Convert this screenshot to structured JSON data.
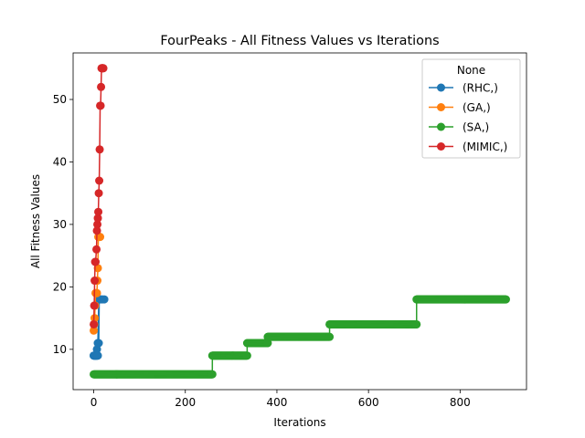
{
  "chart_data": {
    "type": "line",
    "title": "FourPeaks - All Fitness Values vs Iterations",
    "xlabel": "Iterations",
    "ylabel": "All Fitness Values",
    "xlim": [
      -45,
      945
    ],
    "ylim": [
      3.55,
      57.45
    ],
    "x_ticks": [
      0,
      200,
      400,
      600,
      800
    ],
    "y_ticks": [
      10,
      20,
      30,
      40,
      50
    ],
    "grid": false,
    "legend": {
      "title": "None",
      "placement": "top-right"
    },
    "series": [
      {
        "name": "(RHC,)",
        "color": "#1f77b4",
        "segments": [
          [
            0,
            9,
            9
          ],
          [
            9,
            11,
            9
          ],
          [
            11,
            18,
            12
          ]
        ],
        "points": [
          [
            0,
            9
          ],
          [
            3,
            9
          ],
          [
            5,
            9
          ],
          [
            7,
            10
          ],
          [
            9,
            11
          ],
          [
            11,
            11
          ],
          [
            13,
            18
          ],
          [
            16,
            18
          ],
          [
            19,
            18
          ],
          [
            23,
            18
          ]
        ]
      },
      {
        "name": "(GA,)",
        "color": "#ff7f0e",
        "points": [
          [
            0,
            13
          ],
          [
            1,
            14
          ],
          [
            2,
            15
          ],
          [
            3,
            17
          ],
          [
            4,
            19
          ],
          [
            5,
            19
          ],
          [
            6,
            19
          ],
          [
            7,
            19
          ],
          [
            8,
            21
          ],
          [
            9,
            23
          ],
          [
            10,
            28
          ],
          [
            11,
            28
          ],
          [
            12,
            28
          ],
          [
            13,
            28
          ],
          [
            14,
            28
          ]
        ]
      },
      {
        "name": "(SA,)",
        "color": "#2ca02c",
        "segments": [
          [
            0,
            6,
            259
          ],
          [
            259,
            9,
            335
          ],
          [
            335,
            11,
            380
          ],
          [
            380,
            12,
            515
          ],
          [
            515,
            14,
            705
          ],
          [
            705,
            18,
            900
          ]
        ],
        "points": []
      },
      {
        "name": "(MIMIC,)",
        "color": "#d62728",
        "points": [
          [
            0,
            14
          ],
          [
            1,
            17
          ],
          [
            2,
            21
          ],
          [
            3,
            24
          ],
          [
            4,
            24
          ],
          [
            6,
            26
          ],
          [
            7,
            29
          ],
          [
            8,
            30
          ],
          [
            9,
            31
          ],
          [
            10,
            32
          ],
          [
            11,
            35
          ],
          [
            12,
            37
          ],
          [
            13,
            42
          ],
          [
            14,
            49
          ],
          [
            15,
            49
          ],
          [
            16,
            52
          ],
          [
            17,
            55
          ],
          [
            18,
            55
          ],
          [
            19,
            55
          ],
          [
            20,
            55
          ],
          [
            21,
            55
          ]
        ]
      }
    ]
  }
}
